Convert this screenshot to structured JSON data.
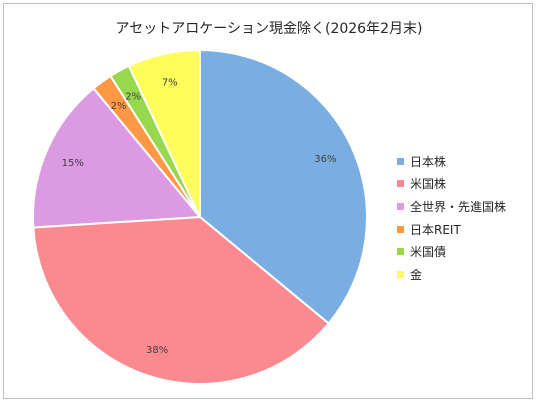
{
  "chart_data": {
    "type": "pie",
    "title": "アセットアロケーション現金除く(2026年2月末)",
    "categories": [
      "日本株",
      "米国株",
      "全世界・先進国株",
      "日本REIT",
      "米国債",
      "金"
    ],
    "values": [
      36,
      38,
      15,
      2,
      2,
      7
    ],
    "value_labels": [
      "36%",
      "38%",
      "15%",
      "2%",
      "2%",
      "7%"
    ],
    "colors": [
      "#7aaee3",
      "#fb8a90",
      "#dc9ae3",
      "#fe9844",
      "#98d84e",
      "#fffd5a"
    ],
    "legend_position": "right"
  }
}
